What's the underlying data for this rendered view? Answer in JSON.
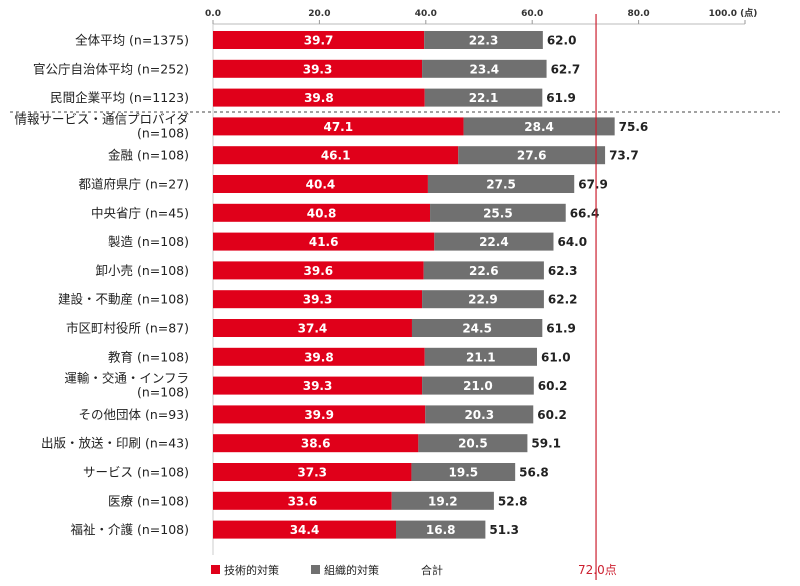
{
  "chart_data": {
    "type": "bar",
    "orientation": "horizontal",
    "stacked": true,
    "xlim": [
      0,
      100
    ],
    "x_ticks": [
      "0.0",
      "20.0",
      "40.0",
      "60.0",
      "80.0",
      "100.0 (点)"
    ],
    "x_ticks_values": [
      0,
      20,
      40,
      60,
      80,
      100
    ],
    "grid": false,
    "legend_position": "bottom-left",
    "colors": {
      "tech": "#e0001a",
      "org": "#707070",
      "reference": "#cc1f2f"
    },
    "categories": [
      [
        "全体平均 (n=1375)"
      ],
      [
        "官公庁自治体平均 (n=252)"
      ],
      [
        "民間企業平均 (n=1123)"
      ],
      [
        "情報サービス・通信プロバイダ",
        "(n=108)"
      ],
      [
        "金融 (n=108)"
      ],
      [
        "都道府県庁 (n=27)"
      ],
      [
        "中央省庁 (n=45)"
      ],
      [
        "製造 (n=108)"
      ],
      [
        "卸小売 (n=108)"
      ],
      [
        "建設・不動産 (n=108)"
      ],
      [
        "市区町村役所 (n=87)"
      ],
      [
        "教育 (n=108)"
      ],
      [
        "運輸・交通・インフラ",
        "(n=108)"
      ],
      [
        "その他団体 (n=93)"
      ],
      [
        "出版・放送・印刷 (n=43)"
      ],
      [
        "サービス (n=108)"
      ],
      [
        "医療 (n=108)"
      ],
      [
        "福祉・介護 (n=108)"
      ]
    ],
    "series": [
      {
        "name": "技術的対策",
        "values": [
          39.7,
          39.3,
          39.8,
          47.1,
          46.1,
          40.4,
          40.8,
          41.6,
          39.6,
          39.3,
          37.4,
          39.8,
          39.3,
          39.9,
          38.6,
          37.3,
          33.6,
          34.4
        ]
      },
      {
        "name": "組織的対策",
        "values": [
          22.3,
          23.4,
          22.1,
          28.4,
          27.6,
          27.5,
          25.5,
          22.4,
          22.6,
          22.9,
          24.5,
          21.1,
          21.0,
          20.3,
          20.5,
          19.5,
          19.2,
          16.8
        ]
      }
    ],
    "totals": [
      62.0,
      62.7,
      61.9,
      75.6,
      73.7,
      67.9,
      66.4,
      64.0,
      62.3,
      62.2,
      61.9,
      61.0,
      60.2,
      60.2,
      59.1,
      56.8,
      52.8,
      51.3
    ],
    "totals_label": "合計",
    "reference_line": {
      "value": 72.0,
      "label": "72.0点"
    },
    "separator_after_index": 2
  }
}
